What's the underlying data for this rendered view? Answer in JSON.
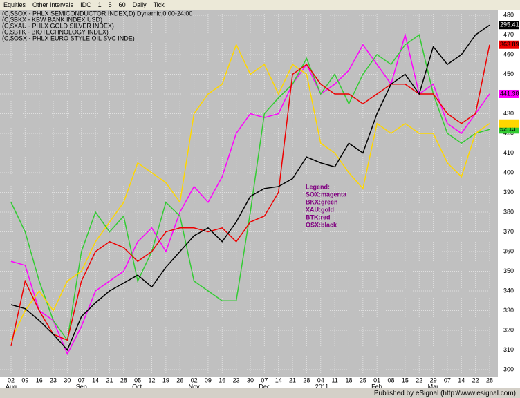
{
  "toolbar": {
    "items": [
      "Equities",
      "Other Intervals",
      "IDC",
      "1",
      "5",
      "60",
      "Daily",
      "Tick"
    ]
  },
  "footer": "Published by eSignal (http://www.esignal.com)",
  "chart_data": {
    "type": "line",
    "header_lines": [
      "(C,$SOX - PHLX SEMICONDUCTOR INDEX,D) Dynamic,0:00-24:00",
      "(C,$BKX - KBW BANK INDEX USD)",
      "(C,$XAU - PHLX GOLD SILVER INDEX)",
      "(C,$BTK - BIOTECHNOLOGY INDEX)",
      "(C,$OSX - PHLX EURO STYLE OIL SVC INDE)"
    ],
    "annotation": [
      "Legend:",
      "SOX:magenta",
      "BKX:green",
      "XAU:gold",
      "BTK:red",
      "OSX:black"
    ],
    "categories": [
      "02",
      "09",
      "16",
      "23",
      "30",
      "07",
      "14",
      "21",
      "28",
      "05",
      "12",
      "19",
      "26",
      "02",
      "09",
      "16",
      "23",
      "30",
      "07",
      "14",
      "21",
      "28",
      "04",
      "11",
      "18",
      "25",
      "01",
      "08",
      "15",
      "22",
      "29",
      "07",
      "14",
      "22",
      "28"
    ],
    "month_labels": [
      "Aug",
      null,
      null,
      null,
      null,
      "Sep",
      null,
      null,
      null,
      "Oct",
      null,
      null,
      null,
      "Nov",
      null,
      null,
      null,
      null,
      "Dec",
      null,
      null,
      null,
      "2011",
      null,
      null,
      null,
      "Feb",
      null,
      null,
      null,
      "Mar",
      null,
      null,
      null,
      null
    ],
    "ylim": [
      296.5,
      482.8
    ],
    "yticks": [
      300,
      310,
      320,
      330,
      340,
      350,
      360,
      370,
      380,
      390,
      400,
      410,
      420,
      430,
      440,
      450,
      460,
      470,
      480
    ],
    "grid": true,
    "series": [
      {
        "name": "SOX",
        "color": "#ff00ff",
        "last_label": "441.38",
        "values": [
          355,
          353,
          330,
          325,
          308,
          322,
          340,
          345,
          350,
          365,
          372,
          360,
          380,
          393,
          385,
          398,
          420,
          430,
          428,
          430,
          445,
          455,
          440,
          445,
          452,
          465,
          455,
          445,
          470,
          440,
          445,
          425,
          420,
          430,
          440
        ]
      },
      {
        "name": "BKX",
        "color": "#33cc33",
        "last_label": "52.13",
        "values": [
          385,
          370,
          345,
          325,
          315,
          360,
          380,
          370,
          378,
          345,
          360,
          385,
          378,
          345,
          340,
          335,
          335,
          380,
          430,
          438,
          445,
          458,
          440,
          450,
          435,
          450,
          460,
          455,
          465,
          470,
          440,
          420,
          415,
          420,
          422
        ]
      },
      {
        "name": "XAU",
        "color": "#ffd700",
        "values": [
          315,
          330,
          340,
          330,
          345,
          350,
          365,
          375,
          385,
          405,
          400,
          395,
          385,
          430,
          440,
          445,
          465,
          450,
          455,
          440,
          455,
          450,
          415,
          410,
          400,
          392,
          425,
          420,
          425,
          420,
          420,
          405,
          398,
          420,
          425
        ]
      },
      {
        "name": "BTK",
        "color": "#ee0000",
        "last_label": "363.89",
        "values": [
          312,
          345,
          330,
          318,
          315,
          345,
          360,
          365,
          362,
          355,
          360,
          370,
          372,
          372,
          370,
          372,
          365,
          375,
          378,
          390,
          450,
          455,
          445,
          440,
          440,
          435,
          440,
          445,
          445,
          440,
          440,
          430,
          425,
          430,
          465
        ]
      },
      {
        "name": "OSX",
        "color": "#000000",
        "last_label": "295.41",
        "values": [
          333,
          331,
          325,
          318,
          310,
          327,
          334,
          340,
          344,
          348,
          342,
          352,
          360,
          368,
          372,
          365,
          375,
          388,
          392,
          393,
          397,
          408,
          405,
          403,
          415,
          410,
          430,
          445,
          450,
          440,
          464,
          455,
          460,
          470,
          475
        ]
      }
    ]
  }
}
